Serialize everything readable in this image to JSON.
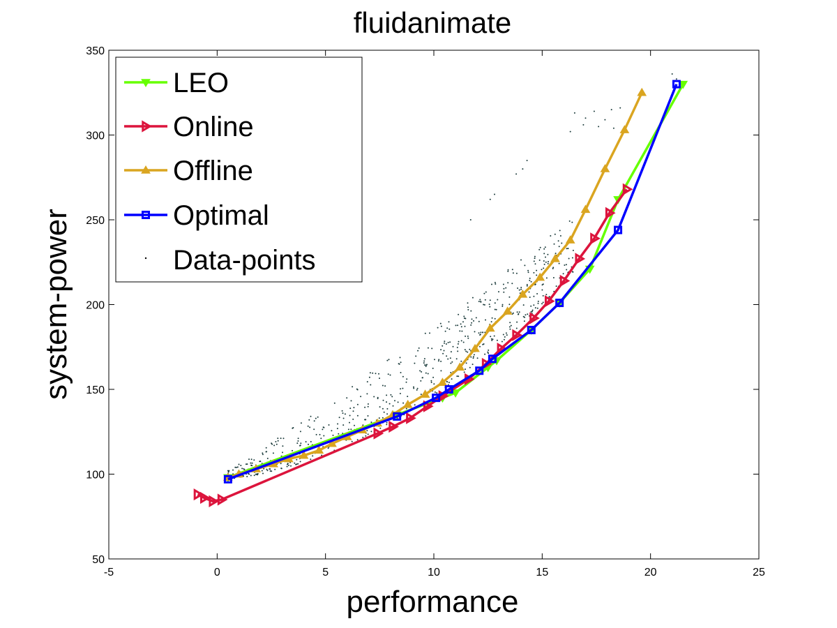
{
  "chart_data": {
    "type": "line",
    "title": "fluidanimate",
    "xlabel": "performance",
    "ylabel": "system-power",
    "xlim": [
      -5,
      25
    ],
    "ylim": [
      50,
      350
    ],
    "xticks": [
      "-5",
      "0",
      "5",
      "10",
      "15",
      "20",
      "25"
    ],
    "yticks": [
      "50",
      "100",
      "150",
      "200",
      "250",
      "300",
      "350"
    ],
    "grid": false,
    "legend_position": "top-left",
    "series": [
      {
        "name": "LEO",
        "color": "#66ff00",
        "marker": "triangle-down",
        "x": [
          0.5,
          8.3,
          10.4,
          11.0,
          12.5,
          12.9,
          14.5,
          15.8,
          17.2,
          18.5,
          21.5
        ],
        "y": [
          98,
          135,
          145,
          148,
          163,
          167,
          185,
          201,
          221,
          262,
          330
        ]
      },
      {
        "name": "Online",
        "color": "#dc143c",
        "marker": "triangle-right",
        "x": [
          -0.9,
          -0.6,
          -0.2,
          0.2,
          7.4,
          8.1,
          8.9,
          9.7,
          10.4,
          11.6,
          12.4,
          13.1,
          13.8,
          14.6,
          15.3,
          16.0,
          16.7,
          17.4,
          18.1,
          18.9
        ],
        "y": [
          88,
          86,
          84,
          85,
          124,
          128,
          133,
          140,
          146,
          156,
          165,
          174,
          182,
          192,
          202,
          214,
          227,
          239,
          254,
          268
        ]
      },
      {
        "name": "Offline",
        "color": "#daa520",
        "marker": "triangle-up",
        "x": [
          0.5,
          1.0,
          1.8,
          2.6,
          3.3,
          4.0,
          4.7,
          5.3,
          6.0,
          6.7,
          7.4,
          8.1,
          8.8,
          9.6,
          10.4,
          11.2,
          11.9,
          12.6,
          13.4,
          14.1,
          14.9,
          15.6,
          16.3,
          17.0,
          17.9,
          18.8,
          19.6
        ],
        "y": [
          98,
          100,
          103,
          106,
          109,
          111,
          114,
          118,
          122,
          126,
          130,
          135,
          141,
          147,
          154,
          163,
          174,
          186,
          196,
          206,
          216,
          227,
          238,
          256,
          280,
          303,
          325
        ]
      },
      {
        "name": "Optimal",
        "color": "#0000ff",
        "marker": "square",
        "x": [
          0.5,
          8.3,
          10.1,
          10.7,
          12.1,
          12.7,
          14.5,
          15.8,
          18.5,
          21.2
        ],
        "y": [
          97,
          134,
          145,
          150,
          161,
          168,
          185,
          201,
          244,
          330
        ]
      },
      {
        "name": "Data-points",
        "color": "#000000",
        "marker": "dot",
        "points": "scatter cloud of measured configurations between the Online and Offline curves, roughly x 0.5–21, y 95–335"
      }
    ]
  }
}
